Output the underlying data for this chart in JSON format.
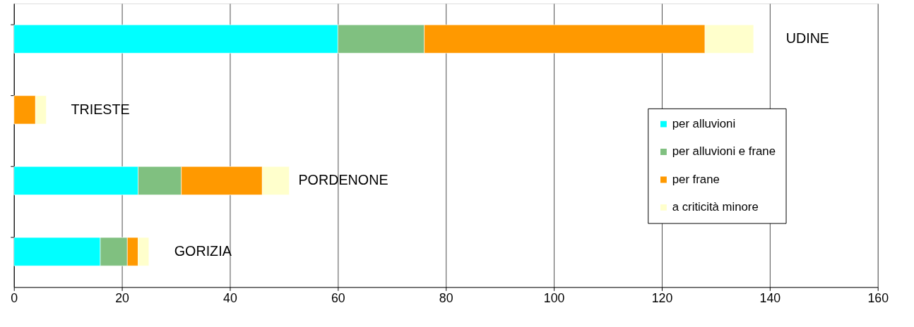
{
  "chart_data": {
    "type": "bar",
    "orientation": "horizontal",
    "stacked": true,
    "categories": [
      "UDINE",
      "TRIESTE",
      "PORDENONE",
      "GORIZIA"
    ],
    "series": [
      {
        "name": "per alluvioni",
        "color": "#00ffff",
        "values": [
          60,
          0,
          23,
          16
        ]
      },
      {
        "name": "per alluvioni e frane",
        "color": "#80c080",
        "values": [
          16,
          0,
          8,
          5
        ]
      },
      {
        "name": "per frane",
        "color": "#ff9900",
        "values": [
          52,
          4,
          15,
          2
        ]
      },
      {
        "name": "a criticità minore",
        "color": "#ffffcc",
        "values": [
          9,
          2,
          5,
          2
        ]
      }
    ],
    "xlim": [
      0,
      160
    ],
    "xticks": [
      0,
      20,
      40,
      60,
      80,
      100,
      120,
      140,
      160
    ],
    "grid": "x",
    "legend": "right",
    "tick_labels": "x"
  }
}
